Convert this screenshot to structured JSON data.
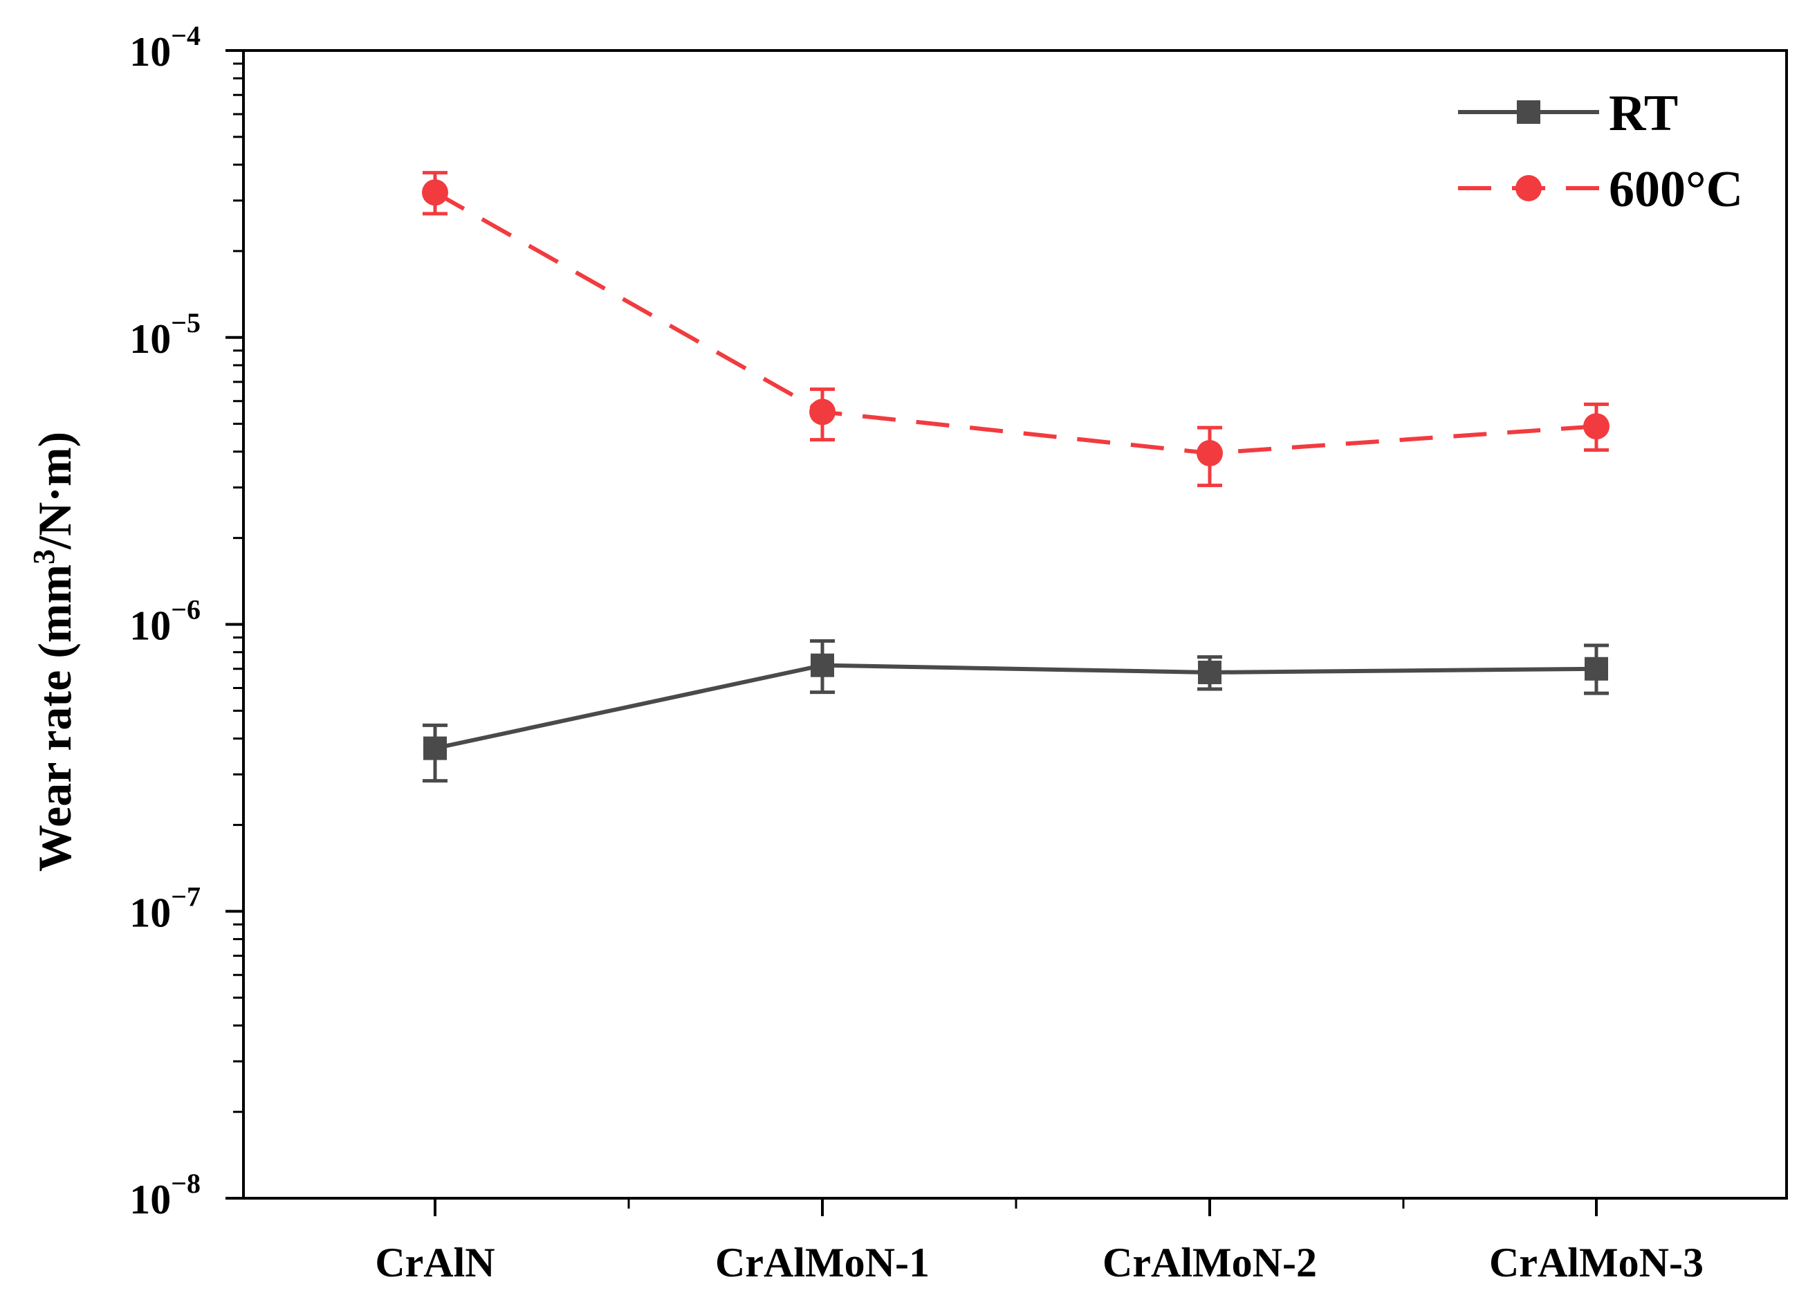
{
  "chart_data": {
    "type": "line",
    "title": "",
    "xlabel": "",
    "ylabel": {
      "prefix": "Wear rate (mm",
      "superscript": "3",
      "suffix": "/N·m)"
    },
    "yscale": "log",
    "ylim": [
      1e-08,
      0.0001
    ],
    "yticks": [
      {
        "base": "10",
        "exp": "−8",
        "value": 1e-08
      },
      {
        "base": "10",
        "exp": "−7",
        "value": 1e-07
      },
      {
        "base": "10",
        "exp": "−6",
        "value": 1e-06
      },
      {
        "base": "10",
        "exp": "−5",
        "value": 1e-05
      },
      {
        "base": "10",
        "exp": "−4",
        "value": 0.0001
      }
    ],
    "categories": [
      "CrAlN",
      "CrAlMoN-1",
      "CrAlMoN-2",
      "CrAlMoN-3"
    ],
    "grid": false,
    "legend_position": "top-right",
    "series": [
      {
        "name": "RT",
        "color": "#4a4a4a",
        "marker": "square",
        "line_style": "solid",
        "values": [
          3.7e-07,
          7.2e-07,
          6.8e-07,
          7e-07
        ],
        "error_low": [
          2.85e-07,
          5.8e-07,
          5.95e-07,
          5.75e-07
        ],
        "error_high": [
          4.45e-07,
          8.75e-07,
          7.7e-07,
          8.45e-07
        ]
      },
      {
        "name": "600°C",
        "color": "#f23b3f",
        "marker": "circle",
        "line_style": "dashed",
        "values": [
          3.2e-05,
          5.5e-06,
          3.95e-06,
          4.9e-06
        ],
        "error_low": [
          2.7e-05,
          4.4e-06,
          3.05e-06,
          4.05e-06
        ],
        "error_high": [
          3.75e-05,
          6.6e-06,
          4.85e-06,
          5.85e-06
        ]
      }
    ]
  }
}
